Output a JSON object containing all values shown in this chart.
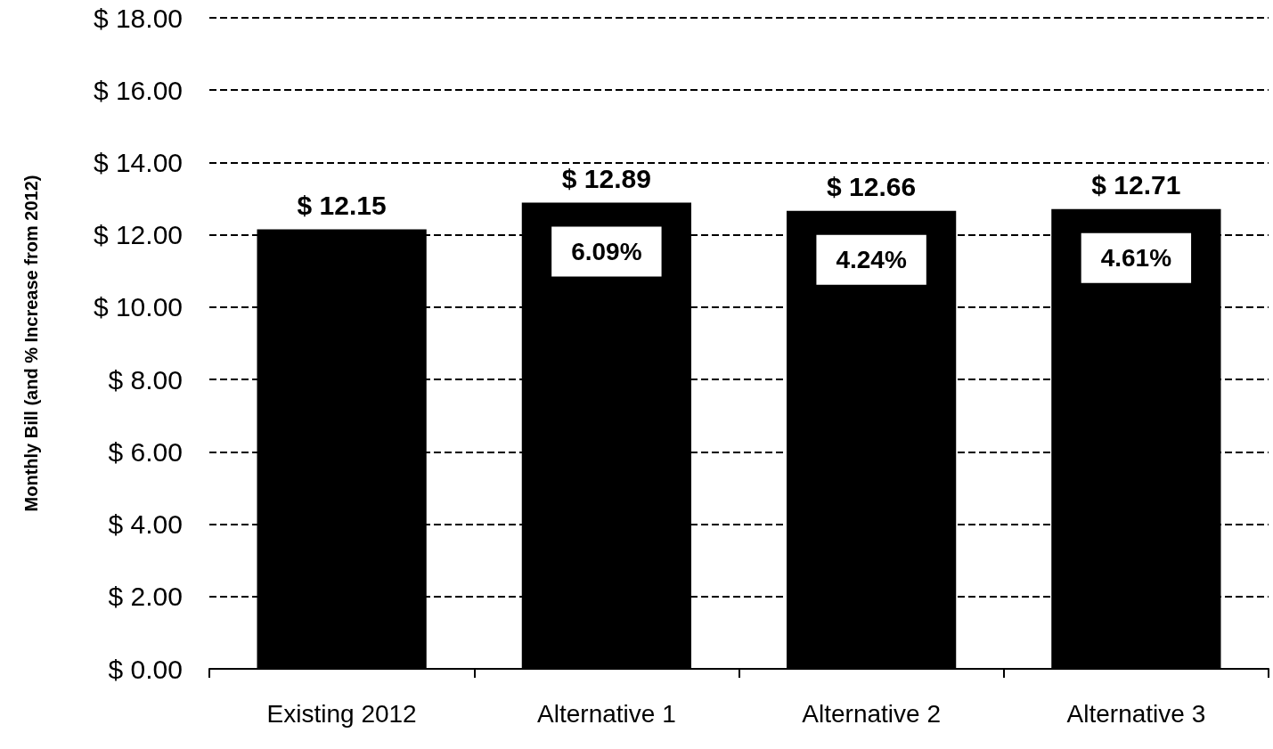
{
  "chart_data": {
    "type": "bar",
    "ylabel": "Monthly Bill (and % Increase from 2012)",
    "categories": [
      "Existing 2012",
      "Alternative 1",
      "Alternative 2",
      "Alternative 3"
    ],
    "series": [
      {
        "color": "#000000",
        "values": [
          12.15,
          12.89,
          12.66,
          12.71
        ],
        "value_labels": [
          "$ 12.15",
          "$ 12.89",
          "$ 12.66",
          "$ 12.71"
        ]
      }
    ],
    "ylim": [
      0,
      18
    ],
    "yticks": [
      {
        "value": 0,
        "label": "$ 0.00"
      },
      {
        "value": 2,
        "label": "$ 2.00"
      },
      {
        "value": 4,
        "label": "$ 4.00"
      },
      {
        "value": 6,
        "label": "$ 6.00"
      },
      {
        "value": 8,
        "label": "$ 8.00"
      },
      {
        "value": 10,
        "label": "$ 10.00"
      },
      {
        "value": 12,
        "label": "$ 12.00"
      },
      {
        "value": 14,
        "label": "$ 14.00"
      },
      {
        "value": 16,
        "label": "$ 16.00"
      },
      {
        "value": 18,
        "label": "$ 18.00"
      }
    ],
    "annotations": [
      {
        "text": "6.09%",
        "x": "Alternative 1",
        "y": 12.89
      },
      {
        "text": "4.24%",
        "x": "Alternative 2",
        "y": 12.66
      },
      {
        "text": "4.61%",
        "x": "Alternative 3",
        "y": 12.71
      }
    ],
    "grid": "y"
  }
}
